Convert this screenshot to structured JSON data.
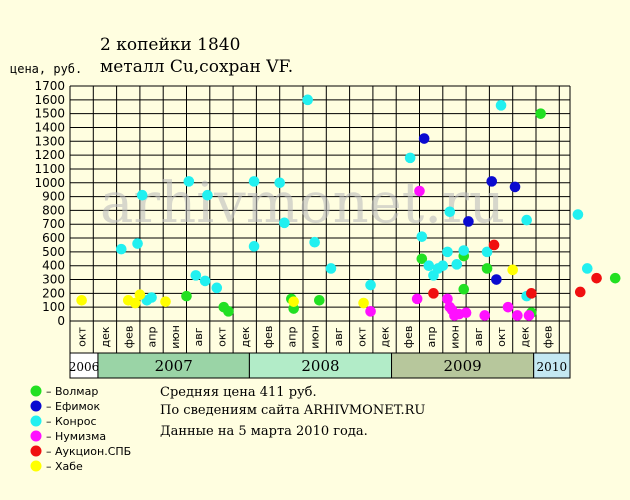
{
  "title_line1": "2 копейки 1840",
  "title_line2": "металл Cu,сохран VF.",
  "watermark": "arhivmonet.ru",
  "chart_data": {
    "type": "scatter",
    "ylabel": "цена, руб.",
    "ylim": [
      0,
      1700
    ],
    "yticks": [
      0,
      100,
      200,
      300,
      400,
      500,
      600,
      700,
      800,
      900,
      1000,
      1100,
      1200,
      1300,
      1400,
      1500,
      1600,
      1700
    ],
    "grid": true,
    "x_categories": [
      "окт",
      "дек",
      "фев",
      "апр",
      "июн",
      "авг",
      "окт",
      "дек",
      "фев",
      "апр",
      "июн",
      "авг",
      "окт",
      "дек",
      "фев",
      "апр",
      "июн",
      "авг",
      "окт",
      "дек",
      "фев"
    ],
    "years": [
      {
        "label": "2006",
        "color": "#ffffff"
      },
      {
        "label": "2007",
        "color": "#9ad4a6"
      },
      {
        "label": "2008",
        "color": "#b2ecc8"
      },
      {
        "label": "2009",
        "color": "#b7c79c"
      },
      {
        "label": "2010",
        "color": "#c4e8f2"
      }
    ],
    "series": [
      {
        "name": "Волмар",
        "color": "#22e022",
        "points": [
          [
            5,
            180
          ],
          [
            6.6,
            100
          ],
          [
            6.8,
            70
          ],
          [
            9.5,
            160
          ],
          [
            9.6,
            90
          ],
          [
            10.7,
            150
          ],
          [
            15.1,
            450
          ],
          [
            16.9,
            470
          ],
          [
            16.9,
            230
          ],
          [
            17.9,
            380
          ],
          [
            19.8,
            60
          ],
          [
            20.2,
            1500
          ],
          [
            23.4,
            310
          ],
          [
            24.6,
            210
          ]
        ]
      },
      {
        "name": "Ефимок",
        "color": "#0a0ad0",
        "points": [
          [
            15.2,
            1320
          ],
          [
            17.1,
            720
          ],
          [
            18.1,
            1010
          ],
          [
            18.3,
            300
          ],
          [
            19.1,
            970
          ]
        ]
      },
      {
        "name": "Конрос",
        "color": "#22f0f0",
        "points": [
          [
            2.2,
            520
          ],
          [
            2.9,
            560
          ],
          [
            3.1,
            910
          ],
          [
            3.3,
            150
          ],
          [
            3.5,
            170
          ],
          [
            5.1,
            1010
          ],
          [
            5.4,
            330
          ],
          [
            5.8,
            290
          ],
          [
            5.9,
            910
          ],
          [
            6.3,
            240
          ],
          [
            7.9,
            1010
          ],
          [
            7.9,
            540
          ],
          [
            9.0,
            1000
          ],
          [
            9.2,
            710
          ],
          [
            10.2,
            1600
          ],
          [
            10.5,
            570
          ],
          [
            11.2,
            380
          ],
          [
            12.9,
            260
          ],
          [
            14.6,
            1180
          ],
          [
            15.1,
            610
          ],
          [
            15.4,
            400
          ],
          [
            15.6,
            330
          ],
          [
            15.8,
            380
          ],
          [
            16.0,
            400
          ],
          [
            16.2,
            500
          ],
          [
            16.3,
            790
          ],
          [
            16.6,
            410
          ],
          [
            16.9,
            510
          ],
          [
            17.9,
            500
          ],
          [
            18.5,
            1560
          ],
          [
            19.6,
            730
          ],
          [
            19.6,
            180
          ],
          [
            21.8,
            770
          ],
          [
            22.2,
            380
          ]
        ]
      },
      {
        "name": "Нумизма",
        "color": "#ff10ff",
        "points": [
          [
            12.9,
            70
          ],
          [
            14.9,
            160
          ],
          [
            15.0,
            940
          ],
          [
            16.2,
            160
          ],
          [
            16.3,
            100
          ],
          [
            16.4,
            80
          ],
          [
            16.5,
            40
          ],
          [
            16.7,
            50
          ],
          [
            17.0,
            60
          ],
          [
            17.8,
            40
          ],
          [
            18.8,
            100
          ],
          [
            19.2,
            40
          ],
          [
            19.7,
            40
          ]
        ]
      },
      {
        "name": "Аукцион.СПБ",
        "color": "#f01010",
        "points": [
          [
            15.6,
            200
          ],
          [
            18.2,
            550
          ],
          [
            19.8,
            200
          ],
          [
            21.9,
            210
          ],
          [
            22.6,
            310
          ]
        ]
      },
      {
        "name": "Хабе",
        "color": "#ffff00",
        "points": [
          [
            0.5,
            150
          ],
          [
            2.5,
            150
          ],
          [
            2.8,
            130
          ],
          [
            3.0,
            190
          ],
          [
            4.1,
            140
          ],
          [
            9.6,
            140
          ],
          [
            12.6,
            130
          ],
          [
            19.0,
            370
          ]
        ]
      }
    ]
  },
  "info": {
    "avg_price": "Средняя цена 411 руб.",
    "source": "По  сведениям сайта ARHIVMONET.RU",
    "date": "Данные на 5 марта 2010 года."
  }
}
